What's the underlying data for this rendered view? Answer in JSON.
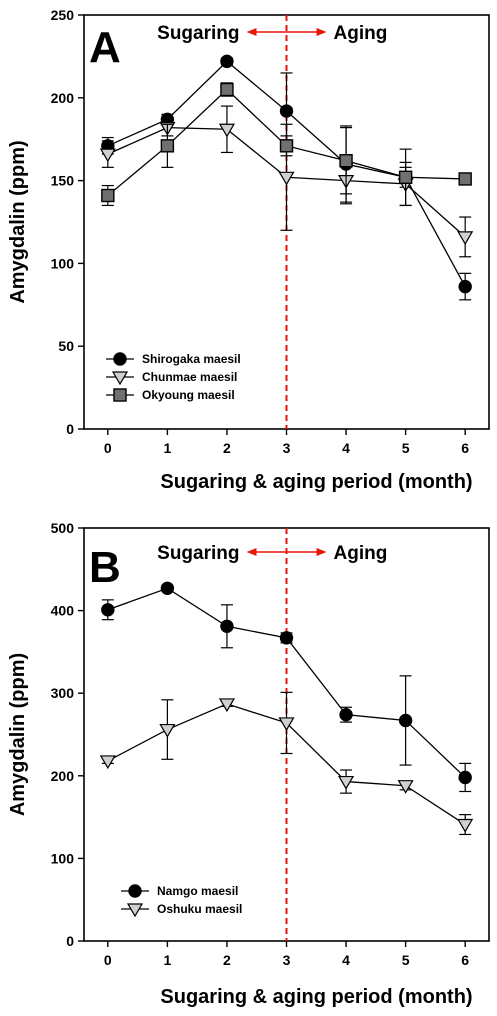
{
  "chart_data": [
    {
      "type": "line",
      "panel_label": "A",
      "phase_labels": {
        "left": "Sugaring",
        "right": "Aging"
      },
      "phase_divider_x": 3,
      "divider_color": "#e8140c",
      "xlabel": "Sugaring & aging period (month)",
      "ylabel": "Amygdalin (ppm)",
      "xlim": [
        -0.4,
        6.4
      ],
      "ylim": [
        0,
        250
      ],
      "x_ticks": [
        "0",
        "1",
        "2",
        "3",
        "4",
        "5",
        "6"
      ],
      "y_ticks": [
        "0",
        "50",
        "100",
        "150",
        "200",
        "250"
      ],
      "legend_position": "bottom-left",
      "series": [
        {
          "name": "Shirogaka maesil",
          "marker": "circle",
          "fill": "#000000",
          "x": [
            0,
            1,
            2,
            3,
            4,
            5,
            6
          ],
          "values": [
            171,
            187,
            222,
            192,
            160,
            152,
            86
          ],
          "errors": [
            5,
            3,
            2,
            23,
            23,
            6,
            8
          ]
        },
        {
          "name": "Chunmae maesil",
          "marker": "triangle-down",
          "fill": "#d0d0d0",
          "x": [
            0,
            1,
            2,
            3,
            4,
            5,
            6
          ],
          "values": [
            166,
            182,
            181,
            152,
            150,
            148,
            116
          ],
          "errors": [
            8,
            5,
            14,
            32,
            14,
            13,
            12
          ]
        },
        {
          "name": "Okyoung maesil",
          "marker": "square",
          "fill": "#707070",
          "x": [
            0,
            1,
            2,
            3,
            4,
            5,
            6
          ],
          "values": [
            141,
            171,
            205,
            171,
            162,
            152,
            151
          ],
          "errors": [
            6,
            13,
            4,
            6,
            20,
            17,
            2
          ]
        }
      ]
    },
    {
      "type": "line",
      "panel_label": "B",
      "phase_labels": {
        "left": "Sugaring",
        "right": "Aging"
      },
      "phase_divider_x": 3,
      "divider_color": "#e8140c",
      "xlabel": "Sugaring & aging period (month)",
      "ylabel": "Amygdalin (ppm)",
      "xlim": [
        -0.4,
        6.4
      ],
      "ylim": [
        0,
        500
      ],
      "x_ticks": [
        "0",
        "1",
        "2",
        "3",
        "4",
        "5",
        "6"
      ],
      "y_ticks": [
        "0",
        "100",
        "200",
        "300",
        "400",
        "500"
      ],
      "legend_position": "bottom-left",
      "series": [
        {
          "name": "Namgo maesil",
          "marker": "circle",
          "fill": "#000000",
          "x": [
            0,
            1,
            2,
            3,
            4,
            5,
            6
          ],
          "values": [
            401,
            427,
            381,
            367,
            274,
            267,
            198
          ],
          "errors": [
            12,
            3,
            26,
            6,
            9,
            54,
            17
          ]
        },
        {
          "name": "Oshuku maesil",
          "marker": "triangle-down",
          "fill": "#d0d0d0",
          "x": [
            0,
            1,
            2,
            3,
            4,
            5,
            6
          ],
          "values": [
            218,
            256,
            287,
            264,
            193,
            188,
            141
          ],
          "errors": [
            3,
            36,
            3,
            37,
            14,
            5,
            12
          ]
        }
      ]
    }
  ]
}
